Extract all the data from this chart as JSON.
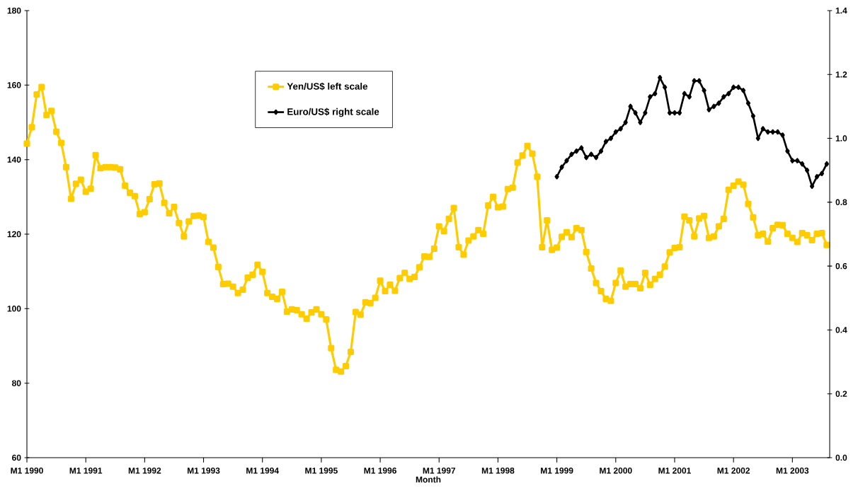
{
  "chart_data": {
    "type": "line",
    "xlabel": "Month",
    "categories": [
      "M1 1990",
      null,
      null,
      null,
      null,
      null,
      null,
      null,
      null,
      null,
      null,
      null,
      "M1 1991",
      null,
      null,
      null,
      null,
      null,
      null,
      null,
      null,
      null,
      null,
      null,
      "M1 1992",
      null,
      null,
      null,
      null,
      null,
      null,
      null,
      null,
      null,
      null,
      null,
      "M1 1993",
      null,
      null,
      null,
      null,
      null,
      null,
      null,
      null,
      null,
      null,
      null,
      "M1 1994",
      null,
      null,
      null,
      null,
      null,
      null,
      null,
      null,
      null,
      null,
      null,
      "M1 1995",
      null,
      null,
      null,
      null,
      null,
      null,
      null,
      null,
      null,
      null,
      null,
      "M1 1996",
      null,
      null,
      null,
      null,
      null,
      null,
      null,
      null,
      null,
      null,
      null,
      "M1 1997",
      null,
      null,
      null,
      null,
      null,
      null,
      null,
      null,
      null,
      null,
      null,
      "M1 1998",
      null,
      null,
      null,
      null,
      null,
      null,
      null,
      null,
      null,
      null,
      null,
      "M1 1999",
      null,
      null,
      null,
      null,
      null,
      null,
      null,
      null,
      null,
      null,
      null,
      "M1 2000",
      null,
      null,
      null,
      null,
      null,
      null,
      null,
      null,
      null,
      null,
      null,
      "M1 2001",
      null,
      null,
      null,
      null,
      null,
      null,
      null,
      null,
      null,
      null,
      null,
      "M1 2002",
      null,
      null,
      null,
      null,
      null,
      null,
      null,
      null,
      null,
      null,
      null,
      "M1 2003",
      null,
      null,
      null,
      null,
      null,
      null,
      null
    ],
    "ylim": [
      60,
      180
    ],
    "yticks": [
      60,
      80,
      100,
      120,
      140,
      160,
      180
    ],
    "y2lim": [
      0,
      1.4
    ],
    "y2ticks": [
      {
        "value": 0,
        "label": "0.0"
      },
      0.2,
      0.4,
      0.6,
      0.8,
      {
        "value": 1,
        "label": "1.0"
      },
      1.2,
      1.4
    ],
    "legend": "top",
    "series": [
      {
        "name": "Yen/US$ left scale",
        "color": "#ffcc00",
        "marker": "square",
        "values": [
          144.3,
          148.7,
          157.5,
          159.5,
          152.0,
          153.1,
          147.5,
          144.5,
          138.0,
          129.5,
          133.5,
          134.6,
          131.4,
          132.2,
          141.2,
          137.7,
          138.0,
          138.0,
          137.9,
          137.4,
          133.0,
          131.1,
          130.2,
          125.4,
          125.9,
          129.4,
          133.4,
          133.6,
          128.4,
          125.6,
          127.3,
          123.0,
          119.4,
          123.4,
          124.9,
          125.0,
          124.6,
          117.9,
          116.4,
          111.2,
          106.6,
          106.7,
          105.9,
          104.2,
          105.1,
          108.3,
          109.1,
          111.8,
          109.9,
          104.2,
          103.2,
          102.6,
          104.5,
          99.2,
          99.8,
          99.6,
          98.5,
          97.3,
          99.0,
          99.8,
          98.5,
          97.1,
          89.4,
          83.6,
          83.1,
          84.6,
          88.4,
          99.1,
          98.4,
          101.7,
          101.5,
          102.9,
          107.5,
          104.7,
          106.4,
          104.8,
          108.2,
          109.6,
          108.0,
          108.5,
          111.1,
          114.0,
          113.9,
          116.1,
          122.1,
          120.8,
          124.1,
          127.0,
          116.5,
          114.5,
          118.3,
          119.4,
          121.1,
          120.1,
          127.7,
          130.0,
          127.2,
          127.4,
          132.1,
          132.5,
          139.2,
          141.1,
          143.7,
          141.6,
          135.4,
          116.5,
          123.7,
          115.8,
          116.4,
          119.3,
          120.5,
          119.2,
          121.6,
          121.1,
          115.2,
          110.8,
          106.9,
          104.7,
          102.6,
          102.1,
          106.9,
          110.2,
          105.9,
          106.6,
          106.6,
          105.5,
          109.6,
          106.4,
          108.0,
          109.1,
          111.3,
          115.1,
          116.3,
          116.5,
          124.7,
          123.7,
          119.4,
          124.2,
          124.9,
          119.0,
          119.4,
          122.1,
          124.1,
          131.9,
          133.0,
          134.1,
          133.3,
          128.1,
          124.5,
          119.7,
          120.1,
          118.0,
          121.6,
          122.5,
          122.4,
          120.1,
          119.0,
          117.9,
          120.3,
          119.7,
          118.4,
          120.1,
          120.3,
          117.1
        ]
      },
      {
        "name": "Euro/US$ right scale",
        "color": "#000000",
        "marker": "diamond",
        "axis": "y2",
        "values": [
          null,
          null,
          null,
          null,
          null,
          null,
          null,
          null,
          null,
          null,
          null,
          null,
          null,
          null,
          null,
          null,
          null,
          null,
          null,
          null,
          null,
          null,
          null,
          null,
          null,
          null,
          null,
          null,
          null,
          null,
          null,
          null,
          null,
          null,
          null,
          null,
          null,
          null,
          null,
          null,
          null,
          null,
          null,
          null,
          null,
          null,
          null,
          null,
          null,
          null,
          null,
          null,
          null,
          null,
          null,
          null,
          null,
          null,
          null,
          null,
          null,
          null,
          null,
          null,
          null,
          null,
          null,
          null,
          null,
          null,
          null,
          null,
          null,
          null,
          null,
          null,
          null,
          null,
          null,
          null,
          null,
          null,
          null,
          null,
          null,
          null,
          null,
          null,
          null,
          null,
          null,
          null,
          null,
          null,
          null,
          null,
          null,
          null,
          null,
          null,
          null,
          null,
          null,
          null,
          null,
          null,
          null,
          null,
          0.88,
          0.91,
          0.93,
          0.95,
          0.96,
          0.97,
          0.94,
          0.95,
          0.94,
          0.96,
          0.99,
          1.0,
          1.02,
          1.03,
          1.05,
          1.1,
          1.08,
          1.05,
          1.08,
          1.13,
          1.14,
          1.19,
          1.16,
          1.08,
          1.08,
          1.08,
          1.14,
          1.13,
          1.18,
          1.18,
          1.15,
          1.09,
          1.1,
          1.11,
          1.13,
          1.14,
          1.16,
          1.16,
          1.15,
          1.11,
          1.07,
          1.0,
          1.03,
          1.02,
          1.02,
          1.02,
          1.01,
          0.96,
          0.93,
          0.93,
          0.92,
          0.9,
          0.85,
          0.88,
          0.89,
          0.92
        ]
      }
    ]
  }
}
